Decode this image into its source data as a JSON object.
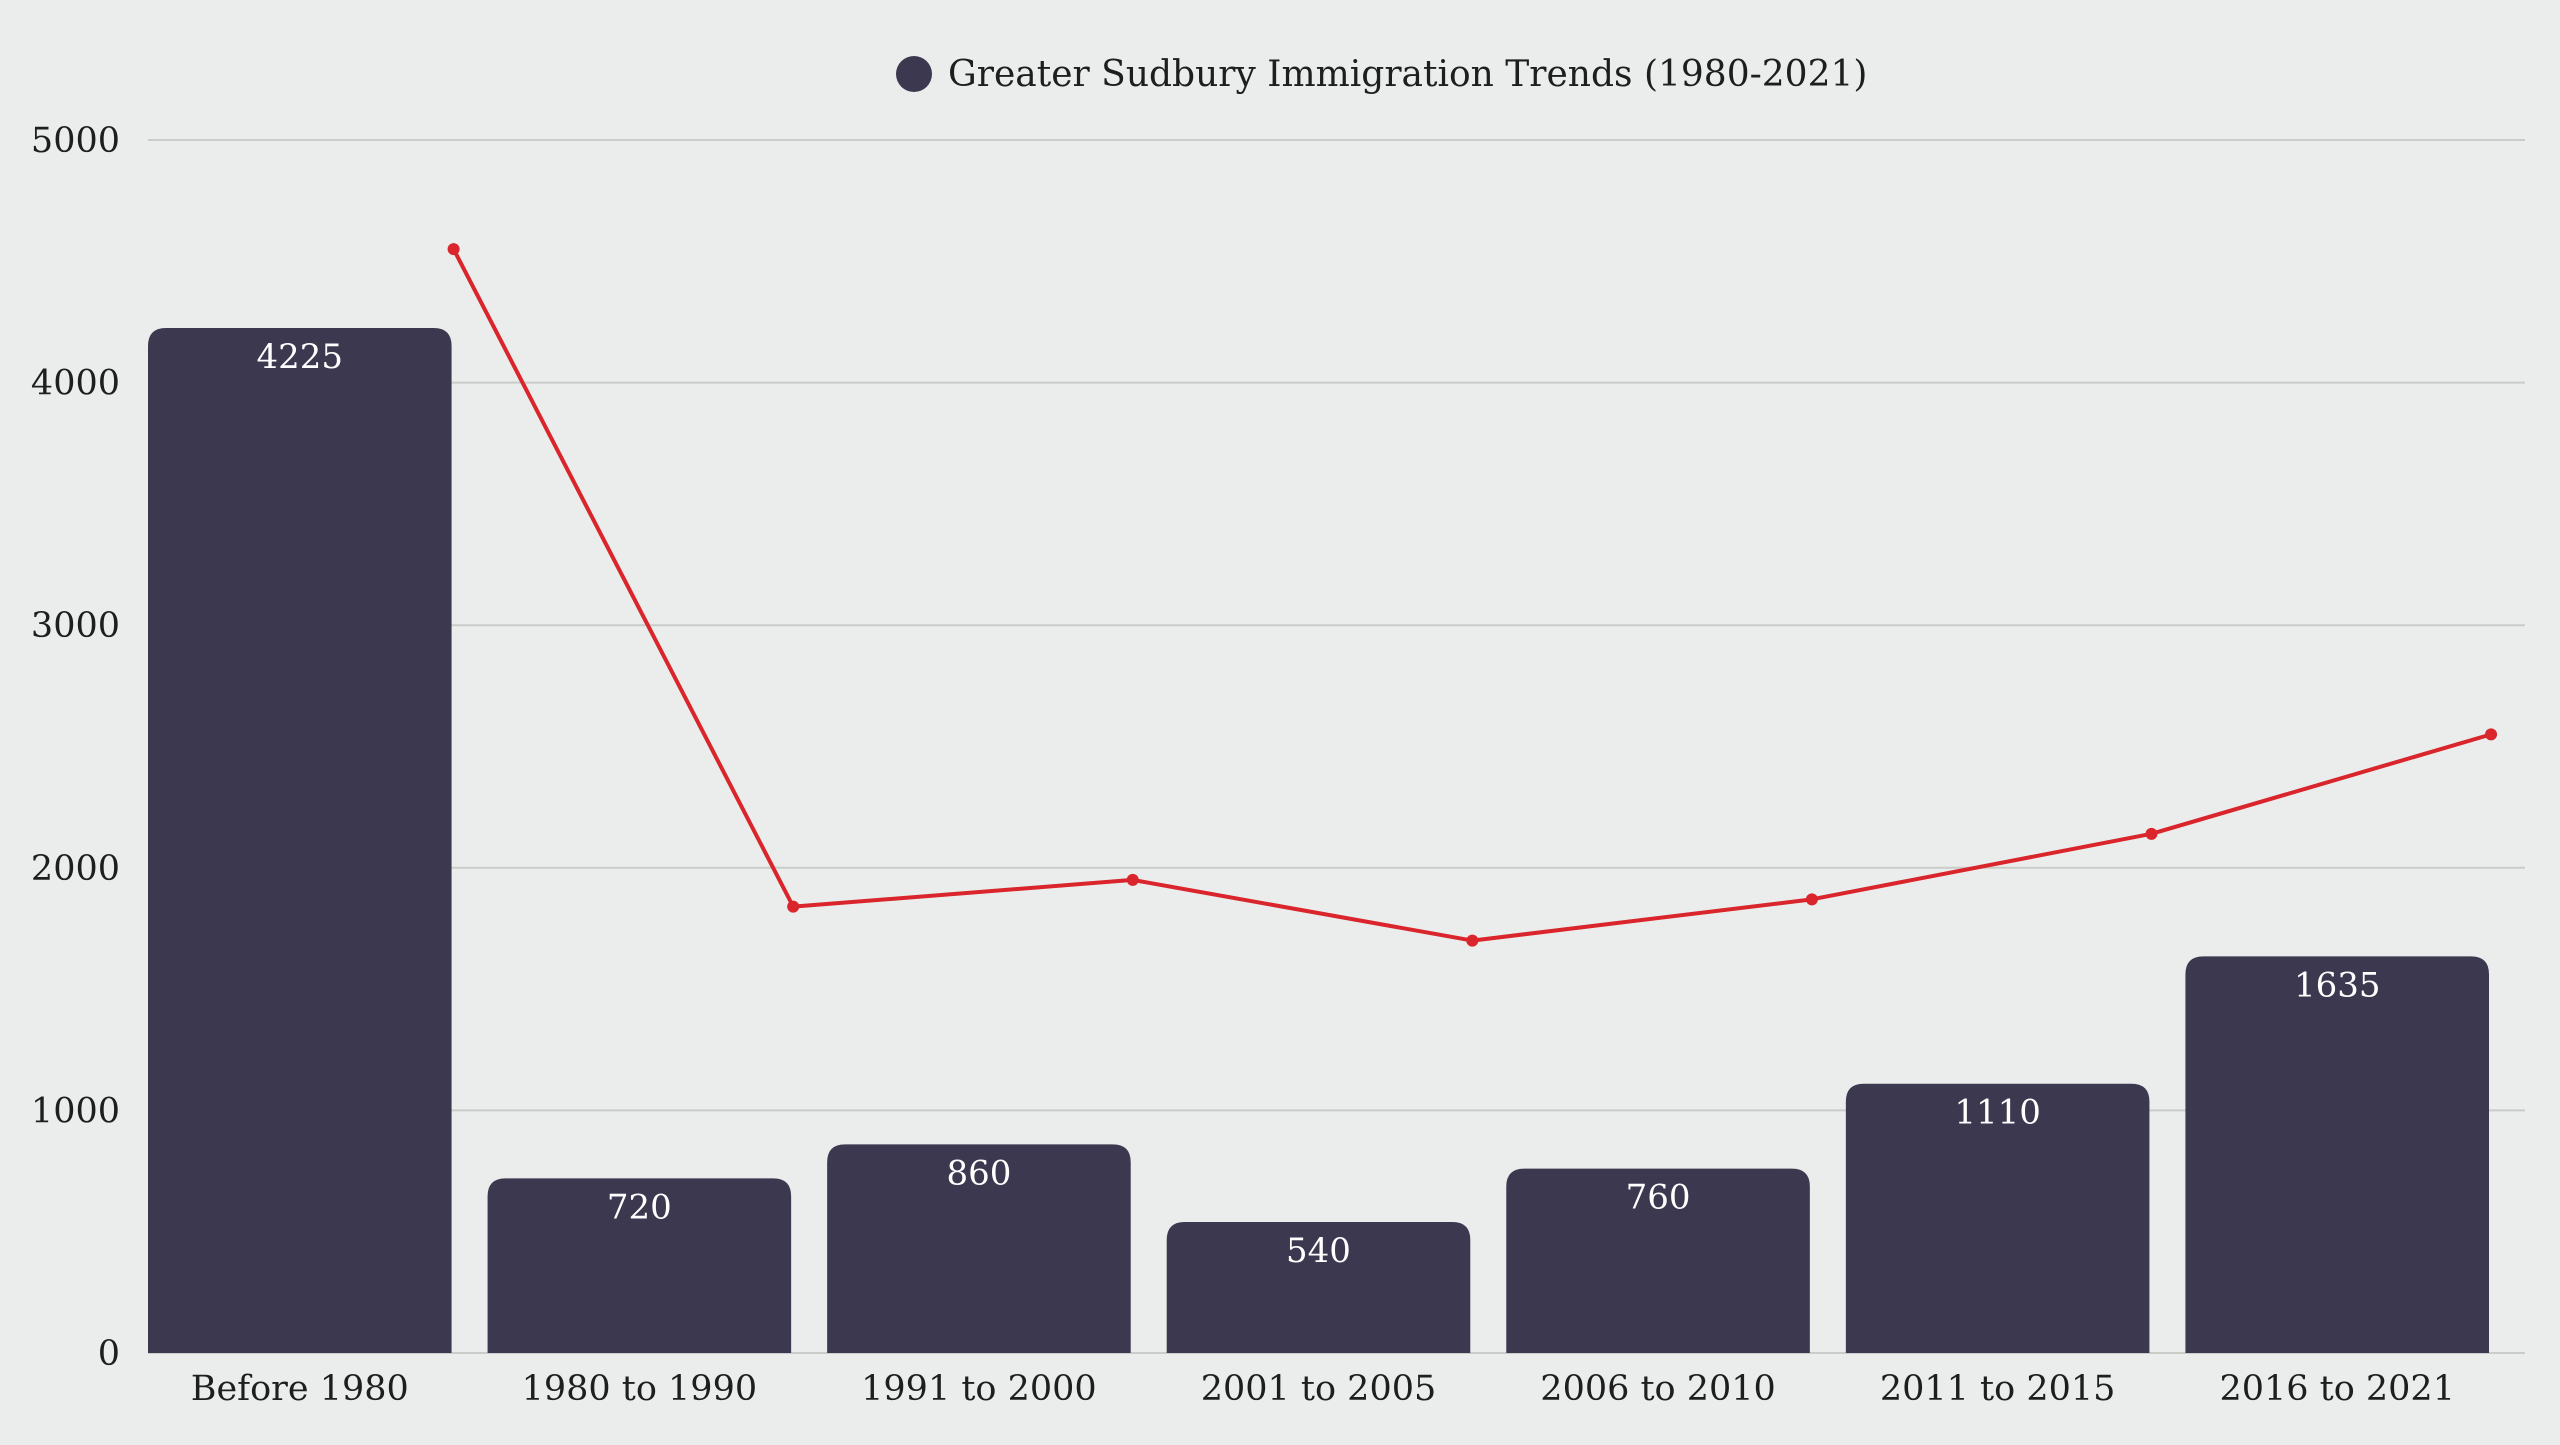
{
  "chart_data": {
    "type": "bar",
    "title": "",
    "legend": {
      "position": "top-center",
      "entries": [
        "Greater Sudbury Immigration Trends (1980-2021)"
      ]
    },
    "categories": [
      "Before 1980",
      "1980 to 1990",
      "1991 to 2000",
      "2001 to 2005",
      "2006 to 2010",
      "2011 to 2015",
      "2016 to 2021"
    ],
    "series": [
      {
        "name": "Greater Sudbury Immigration Trends (1980-2021)",
        "type": "bar",
        "values": [
          4225,
          720,
          860,
          540,
          760,
          1110,
          1635
        ],
        "color": "#3c384f"
      },
      {
        "type": "line",
        "values": [
          4550,
          1840,
          1950,
          1700,
          1870,
          2140,
          2550
        ],
        "color": "#d9252b"
      }
    ],
    "ylim": [
      0,
      5000
    ],
    "yticks": [
      "0",
      "1000",
      "2000",
      "3000",
      "4000",
      "5000"
    ],
    "xlabel": "",
    "ylabel": "",
    "grid": true,
    "colors": {
      "background": "#eaedeb",
      "grid": "#c8cdca",
      "axis_text": "#1e1e1e",
      "value_text": "#ffffff"
    }
  }
}
